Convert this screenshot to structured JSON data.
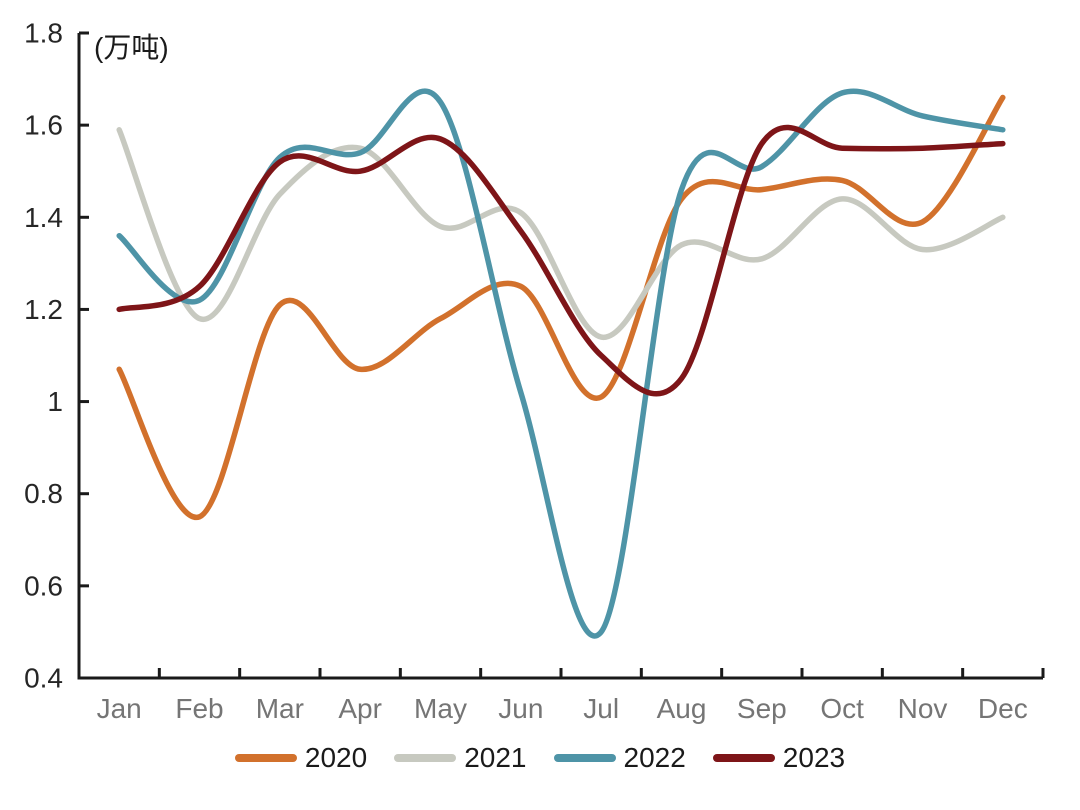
{
  "chart_data": {
    "type": "line",
    "title": "",
    "unit_label": "(万吨)",
    "smooth": true,
    "grid": "off",
    "categories": [
      "Jan",
      "Feb",
      "Mar",
      "Apr",
      "May",
      "Jun",
      "Jul",
      "Aug",
      "Sep",
      "Oct",
      "Nov",
      "Dec"
    ],
    "series": [
      {
        "name": "2020",
        "color": "#D2712C",
        "values": [
          1.07,
          0.75,
          1.21,
          1.07,
          1.18,
          1.25,
          1.01,
          1.44,
          1.46,
          1.48,
          1.39,
          1.66
        ]
      },
      {
        "name": "2021",
        "color": "#C7C9C0",
        "values": [
          1.59,
          1.18,
          1.45,
          1.55,
          1.38,
          1.41,
          1.14,
          1.34,
          1.31,
          1.44,
          1.33,
          1.4
        ]
      },
      {
        "name": "2022",
        "color": "#4E94A7",
        "values": [
          1.36,
          1.22,
          1.53,
          1.54,
          1.65,
          1.02,
          0.5,
          1.46,
          1.51,
          1.67,
          1.62,
          1.59
        ]
      },
      {
        "name": "2023",
        "color": "#7E1518",
        "values": [
          1.2,
          1.25,
          1.52,
          1.5,
          1.57,
          1.37,
          1.1,
          1.05,
          1.56,
          1.55,
          1.55,
          1.56
        ]
      }
    ],
    "y_axis": {
      "min": 0.4,
      "max": 1.8,
      "step": 0.2,
      "tick_labels": [
        "1.8",
        "1.6",
        "1.4",
        "1.2",
        "1",
        "0.8",
        "0.6",
        "0.4"
      ]
    },
    "x_axis": {
      "tick_labels": [
        "Jan",
        "Feb",
        "Mar",
        "Apr",
        "May",
        "Jun",
        "Jul",
        "Aug",
        "Sep",
        "Oct",
        "Nov",
        "Dec"
      ]
    },
    "legend": {
      "position": "bottom",
      "entries": [
        "2020",
        "2021",
        "2022",
        "2023"
      ]
    }
  },
  "styles": {
    "background": "#ffffff",
    "axis_color": "#1a1a1a",
    "y_label_color": "#262626",
    "x_label_color": "#757575",
    "legend_text_color": "#1a1a1a"
  }
}
